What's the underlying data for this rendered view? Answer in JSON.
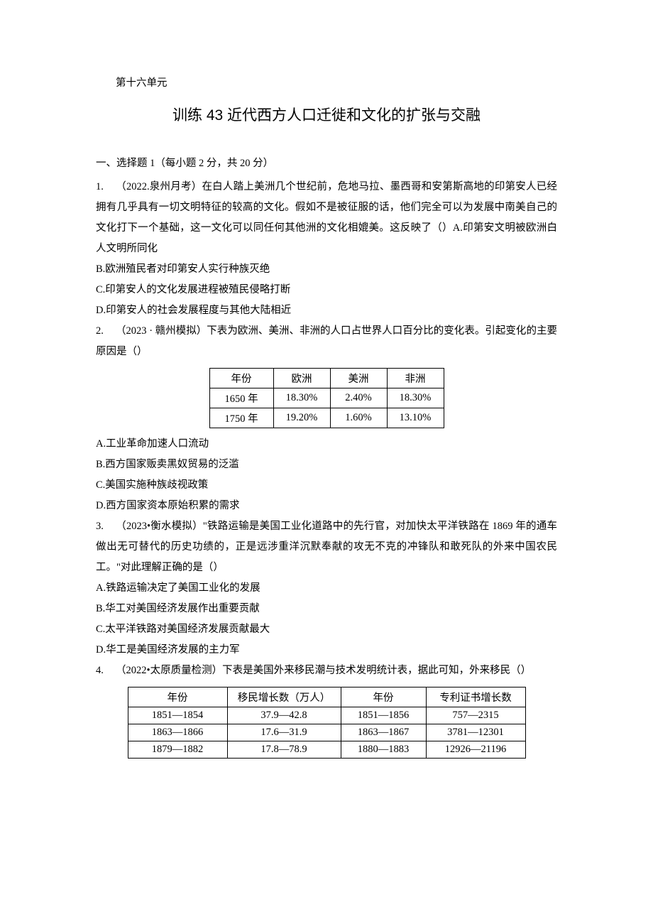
{
  "unit_label": "第十六单元",
  "title": "训练 43 近代西方人口迁徙和文化的扩张与交融",
  "section1": "一、选择题 1（每小题 2 分，共 20 分）",
  "q1": {
    "num": "1.",
    "text": "（2022.泉州月考）在白人踏上美洲几个世纪前，危地马拉、墨西哥和安第斯高地的印第安人已经拥有几乎具有一切文明特征的较高的文化。假如不是被征服的话，他们完全可以为发展中南美自己的文化打下一个基础，这一文化可以同任何其他洲的文化相媲美。这反映了（）A.印第安文明被欧洲白人文明所同化",
    "b": "B.欧洲殖民者对印第安人实行种族灭绝",
    "c": "C.印第安人的文化发展进程被殖民侵略打断",
    "d": "D.印第安人的社会发展程度与其他大陆相近"
  },
  "q2": {
    "num": "2.",
    "text": "（2023 · 赣州模拟）下表为欧洲、美洲、非洲的人口占世界人口百分比的变化表。引起变化的主要原因是（）",
    "a": "A.工业革命加速人口流动",
    "b": "B.西方国家贩卖黑奴贸易的泛滥",
    "c": "C.美国实施种族歧视政策",
    "d": "D.西方国家资本原始积累的需求"
  },
  "table1": {
    "headers": [
      "年份",
      "欧洲",
      "美洲",
      "非洲"
    ],
    "rows": [
      [
        "1650 年",
        "18.30%",
        "2.40%",
        "18.30%"
      ],
      [
        "1750 年",
        "19.20%",
        "1.60%",
        "13.10%"
      ]
    ]
  },
  "q3": {
    "num": "3.",
    "text": "（2023•衡水模拟）\"铁路运输是美国工业化道路中的先行官，对加快太平洋铁路在 1869 年的通车做出无可替代的历史功绩的，正是远涉重洋沉默奉献的攻无不克的冲锋队和敢死队的外来中国农民工。\"对此理解正确的是（）",
    "a": "A.铁路运输决定了美国工业化的发展",
    "b": "B.华工对美国经济发展作出重要贡献",
    "c": "C.太平洋铁路对美国经济发展贡献最大",
    "d": "D.华工是美国经济发展的主力军"
  },
  "q4": {
    "num": "4.",
    "text": "（2022•太原质量检测）下表是美国外来移民潮与技术发明统计表，据此可知，外来移民（）"
  },
  "table2": {
    "headers": [
      "年份",
      "移民增长数（万人）",
      "年份",
      "专利证书增长数"
    ],
    "rows": [
      [
        "1851—1854",
        "37.9—42.8",
        "1851—1856",
        "757—2315"
      ],
      [
        "1863—1866",
        "17.6—31.9",
        "1863—1867",
        "3781—12301"
      ],
      [
        "1879—1882",
        "17.8—78.9",
        "1880—1883",
        "12926—21196"
      ]
    ]
  }
}
